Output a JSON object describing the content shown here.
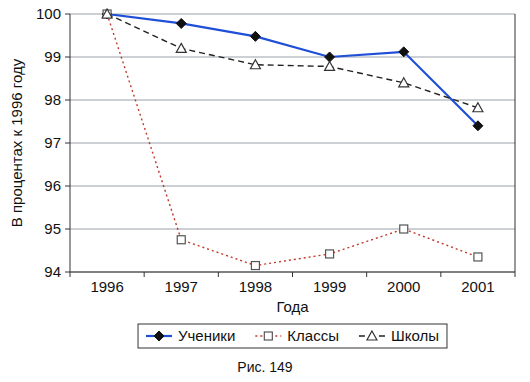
{
  "chart_data": {
    "type": "line",
    "title": "Рис. 149",
    "x_label": "Года",
    "y_label": "В процентах к 1996 году",
    "categories": [
      "1996",
      "1997",
      "1998",
      "1999",
      "2000",
      "2001"
    ],
    "series": [
      {
        "name": "Ученики",
        "color": "#1f4fd6",
        "marker": "diamond",
        "line_style": "solid",
        "values": [
          100,
          99.78,
          99.48,
          99.0,
          99.12,
          97.4
        ]
      },
      {
        "name": "Классы",
        "color": "#c0392b",
        "marker": "square",
        "line_style": "dotted",
        "values": [
          100,
          94.75,
          94.15,
          94.42,
          95.0,
          94.35
        ]
      },
      {
        "name": "Школы",
        "color": "#222222",
        "marker": "triangle",
        "line_style": "dashed",
        "values": [
          100,
          99.2,
          98.82,
          98.78,
          98.4,
          97.82
        ]
      }
    ],
    "ylim": [
      94,
      100
    ],
    "yticks": [
      94,
      95,
      96,
      97,
      98,
      99,
      100
    ],
    "grid": true,
    "legend": "bottom"
  }
}
